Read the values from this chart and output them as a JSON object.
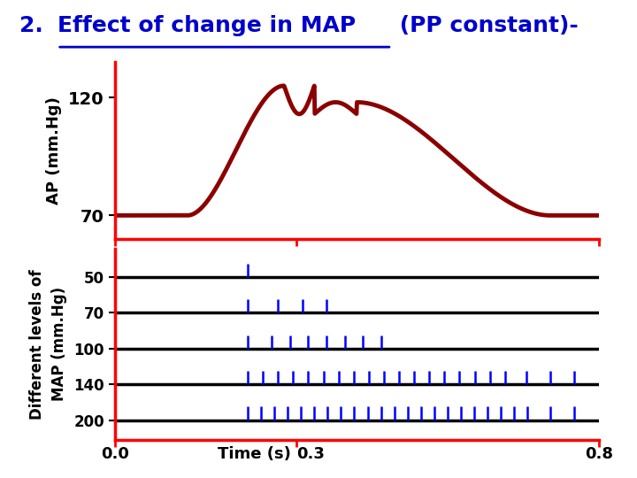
{
  "title_prefix": "2. ",
  "title_underlined": "Effect of change in MAP",
  "title_suffix": " (PP constant)-",
  "title_color": "#0000CC",
  "background_color": "#ffffff",
  "top_panel": {
    "ylabel": "AP (mm.Hg)",
    "yticks": [
      70,
      120
    ],
    "ylim": [
      60,
      135
    ],
    "xlim": [
      0.0,
      0.8
    ],
    "curve_color": "#8B0000",
    "axes_color": "red",
    "linewidth": 3.5
  },
  "bottom_panel": {
    "ylabel": "Different levels of\nMAP (mm.Hg)",
    "xlabel": "Time (s)",
    "yticks": [
      50,
      70,
      100,
      140,
      200
    ],
    "xlim": [
      0.0,
      0.8
    ],
    "axes_color": "red",
    "spike_color": "#0000FF",
    "baseline_color": "black",
    "xtick_positions": [
      0.0,
      0.3,
      0.8
    ]
  }
}
